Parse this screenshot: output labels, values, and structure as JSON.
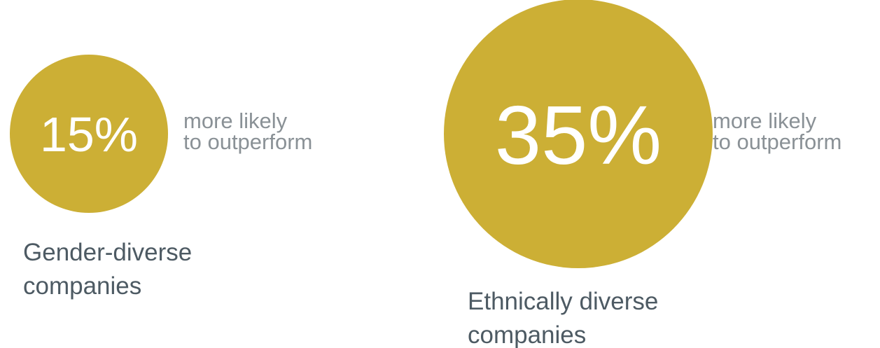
{
  "chart_data": {
    "type": "bubble",
    "items": [
      {
        "label_lines": [
          "Gender-diverse",
          "companies"
        ],
        "value": 15,
        "value_label": "15%",
        "caption_lines": [
          "more likely",
          "to outperform"
        ]
      },
      {
        "label_lines": [
          "Ethnically diverse",
          "companies"
        ],
        "value": 35,
        "value_label": "35%",
        "caption_lines": [
          "more likely",
          "to outperform"
        ]
      }
    ]
  },
  "colors": {
    "bubble": "#CCAF35",
    "caption_text": "#8A9196",
    "label_text": "#4D5A63",
    "value_text": "#FFFFFF"
  }
}
